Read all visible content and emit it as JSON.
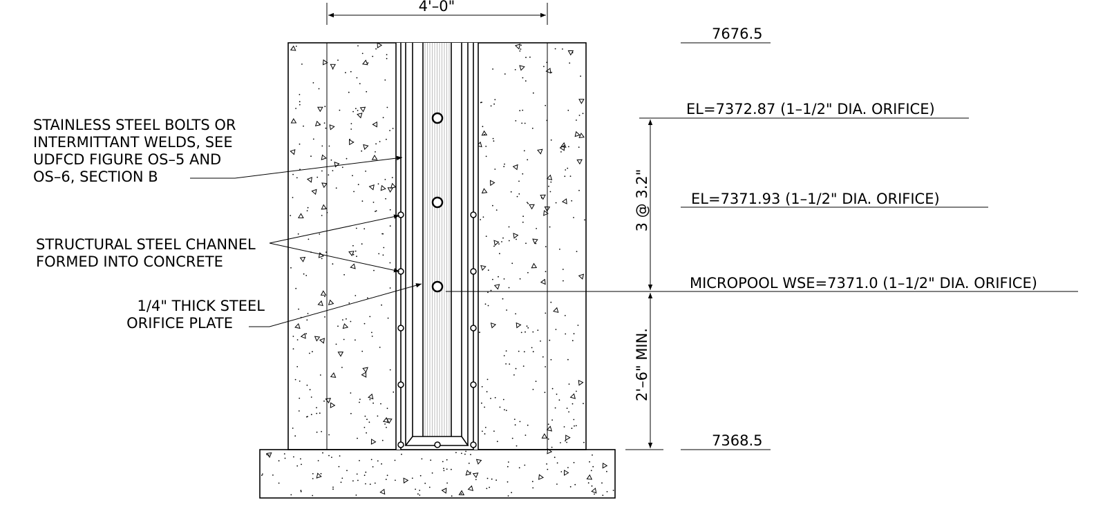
{
  "dimensions": {
    "width": "4'–0\"",
    "spacing": "3 @ 3.2\"",
    "min_depth": "2'–6\" MIN."
  },
  "elevations": [
    {
      "label": "7676.5"
    },
    {
      "label": "EL=7372.87 (1–1/2\" DIA. ORIFICE)"
    },
    {
      "label": "EL=7371.93 (1–1/2\" DIA. ORIFICE)"
    },
    {
      "label": "MICROPOOL WSE=7371.0 (1–1/2\" DIA. ORIFICE)"
    },
    {
      "label": "7368.5"
    }
  ],
  "callouts": [
    {
      "lines": [
        "STAINLESS STEEL BOLTS OR",
        "INTERMITTANT WELDS, SEE",
        "UDFCD FIGURE OS–5 AND",
        "OS–6, SECTION B"
      ]
    },
    {
      "lines": [
        "STRUCTURAL STEEL CHANNEL",
        "FORMED INTO CONCRETE"
      ]
    },
    {
      "lines": [
        "1/4\" THICK STEEL",
        "ORIFICE PLATE"
      ]
    }
  ]
}
